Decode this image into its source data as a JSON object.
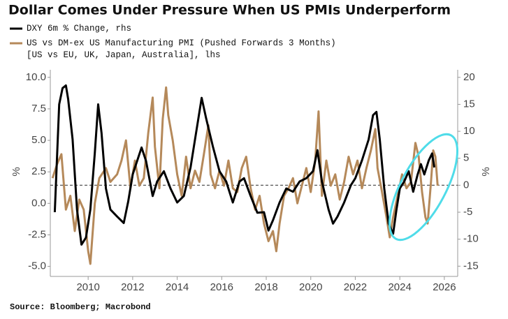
{
  "chart_data": {
    "type": "line",
    "title": "Dollar Comes Under Pressure When US PMIs Underperform",
    "source": "Source: Bloomberg; Macrobond",
    "y_label": "%",
    "y2_label": "%",
    "xlim": [
      2008.3,
      2026.6
    ],
    "xticks": [
      2010,
      2012,
      2014,
      2016,
      2018,
      2020,
      2022,
      2024,
      2026
    ],
    "ylim": [
      -5.8,
      10.6
    ],
    "yticks": [
      {
        "value": -5,
        "label": "-5.0"
      },
      -2.5,
      {
        "value": 0,
        "label": "0.0"
      },
      2.5,
      {
        "value": 5,
        "label": "5.0"
      },
      7.5,
      {
        "value": 10,
        "label": "10.0"
      }
    ],
    "y2lim": [
      -16.9,
      21.4
    ],
    "y2ticks": [
      -15,
      -10,
      -5,
      0,
      5,
      10,
      15,
      20
    ],
    "y2_refline": 0,
    "series": [
      {
        "name": "DXY 6m % Change, rhs",
        "color": "#000000",
        "axis": "y2",
        "x": [
          2008.5,
          2008.7,
          2008.85,
          2009.0,
          2009.1,
          2009.3,
          2009.5,
          2009.7,
          2009.9,
          2010.1,
          2010.3,
          2010.45,
          2010.6,
          2010.8,
          2011.0,
          2011.3,
          2011.6,
          2011.8,
          2012.0,
          2012.4,
          2012.6,
          2012.9,
          2013.1,
          2013.4,
          2013.7,
          2014.0,
          2014.3,
          2014.6,
          2014.8,
          2015.0,
          2015.1,
          2015.3,
          2015.6,
          2015.9,
          2016.2,
          2016.5,
          2016.8,
          2017.0,
          2017.3,
          2017.6,
          2017.9,
          2018.1,
          2018.3,
          2018.6,
          2018.9,
          2019.2,
          2019.5,
          2019.8,
          2020.1,
          2020.3,
          2020.5,
          2020.8,
          2021.0,
          2021.2,
          2021.5,
          2021.8,
          2022.0,
          2022.3,
          2022.6,
          2022.8,
          2022.95,
          2023.1,
          2023.3,
          2023.5,
          2023.7,
          2023.85,
          2024.0,
          2024.2,
          2024.4,
          2024.6,
          2024.8,
          2024.95,
          2025.1,
          2025.3,
          2025.45,
          2025.55
        ],
        "values": [
          -5,
          15,
          18,
          18.5,
          16,
          8.5,
          -4.5,
          -11,
          -9.7,
          -4.5,
          6,
          15,
          9.7,
          -0.6,
          -4.5,
          -5.8,
          -7,
          -3,
          2,
          7,
          4.5,
          -2,
          0.7,
          2.6,
          -0.6,
          -3.2,
          -2,
          3.3,
          8.5,
          13.6,
          16.2,
          12.4,
          7.2,
          2.6,
          0.7,
          -3.2,
          0.7,
          1.3,
          -2,
          -5.1,
          -5,
          -8.4,
          -6.5,
          -3.2,
          -0.6,
          -1.2,
          0.7,
          1.3,
          2.6,
          6.5,
          0.7,
          -4.5,
          -7.1,
          -5.8,
          -3.2,
          0,
          1.3,
          4.6,
          8.5,
          13,
          13.6,
          8.5,
          -0.6,
          -7.1,
          -9,
          -4.5,
          -0.6,
          0.7,
          2.6,
          -1.2,
          2,
          3.9,
          2,
          4.6,
          5.9,
          3.3
        ]
      },
      {
        "name": "US vs DM-ex US Manufacturing PMI (Pushed Forwards 3 Months) [US vs EU, UK, Japan, Australia], lhs",
        "color": "#b5895a",
        "axis": "y",
        "x": [
          2008.4,
          2008.6,
          2008.8,
          2009.0,
          2009.2,
          2009.4,
          2009.6,
          2009.8,
          2010.0,
          2010.1,
          2010.3,
          2010.5,
          2010.8,
          2011.0,
          2011.3,
          2011.5,
          2011.7,
          2011.9,
          2012.1,
          2012.3,
          2012.5,
          2012.7,
          2012.9,
          2013.0,
          2013.2,
          2013.35,
          2013.5,
          2013.6,
          2013.8,
          2014.0,
          2014.2,
          2014.4,
          2014.6,
          2014.8,
          2015.0,
          2015.2,
          2015.4,
          2015.5,
          2015.7,
          2015.9,
          2016.1,
          2016.3,
          2016.5,
          2016.7,
          2016.9,
          2017.1,
          2017.3,
          2017.5,
          2017.7,
          2017.9,
          2018.1,
          2018.3,
          2018.45,
          2018.6,
          2018.8,
          2019.0,
          2019.2,
          2019.4,
          2019.6,
          2019.8,
          2020.0,
          2020.2,
          2020.35,
          2020.5,
          2020.7,
          2020.9,
          2021.1,
          2021.3,
          2021.5,
          2021.7,
          2021.9,
          2022.1,
          2022.3,
          2022.5,
          2022.7,
          2022.9,
          2023.0,
          2023.2,
          2023.4,
          2023.55,
          2023.7,
          2023.9,
          2024.1,
          2024.3,
          2024.5,
          2024.7,
          2024.85,
          2025.0,
          2025.15,
          2025.25,
          2025.4,
          2025.5,
          2025.6,
          2025.7
        ],
        "values": [
          2,
          3.1,
          3.9,
          -0.5,
          0.6,
          -2.2,
          0.3,
          -0.5,
          -3.8,
          -4.8,
          0,
          2,
          2.8,
          1.7,
          2.3,
          3.4,
          5,
          1.2,
          3.4,
          1.4,
          2,
          5.6,
          8.4,
          4.5,
          1.2,
          6.7,
          9.2,
          7,
          5,
          2.3,
          0.6,
          3.7,
          1.2,
          2.6,
          1.7,
          3.9,
          6.2,
          2.3,
          1.2,
          2.6,
          1.4,
          3.4,
          1.2,
          0.9,
          2.8,
          3.7,
          1.2,
          -0.5,
          0.6,
          -1.6,
          -3,
          -2.2,
          -3.8,
          -1.6,
          0.6,
          1.2,
          2,
          0,
          1.4,
          2.8,
          0.9,
          3.4,
          7.3,
          0.6,
          3.4,
          1.4,
          2.3,
          0.3,
          1.7,
          3.7,
          2.3,
          3.4,
          1.2,
          2.8,
          4.2,
          5.9,
          2.8,
          0.9,
          -1.1,
          -2.7,
          -1.1,
          0.6,
          2.3,
          1.2,
          1.7,
          4.8,
          3.7,
          0.9,
          -1.1,
          -1.6,
          1.7,
          4.2,
          3.7,
          1.4
        ]
      }
    ]
  }
}
